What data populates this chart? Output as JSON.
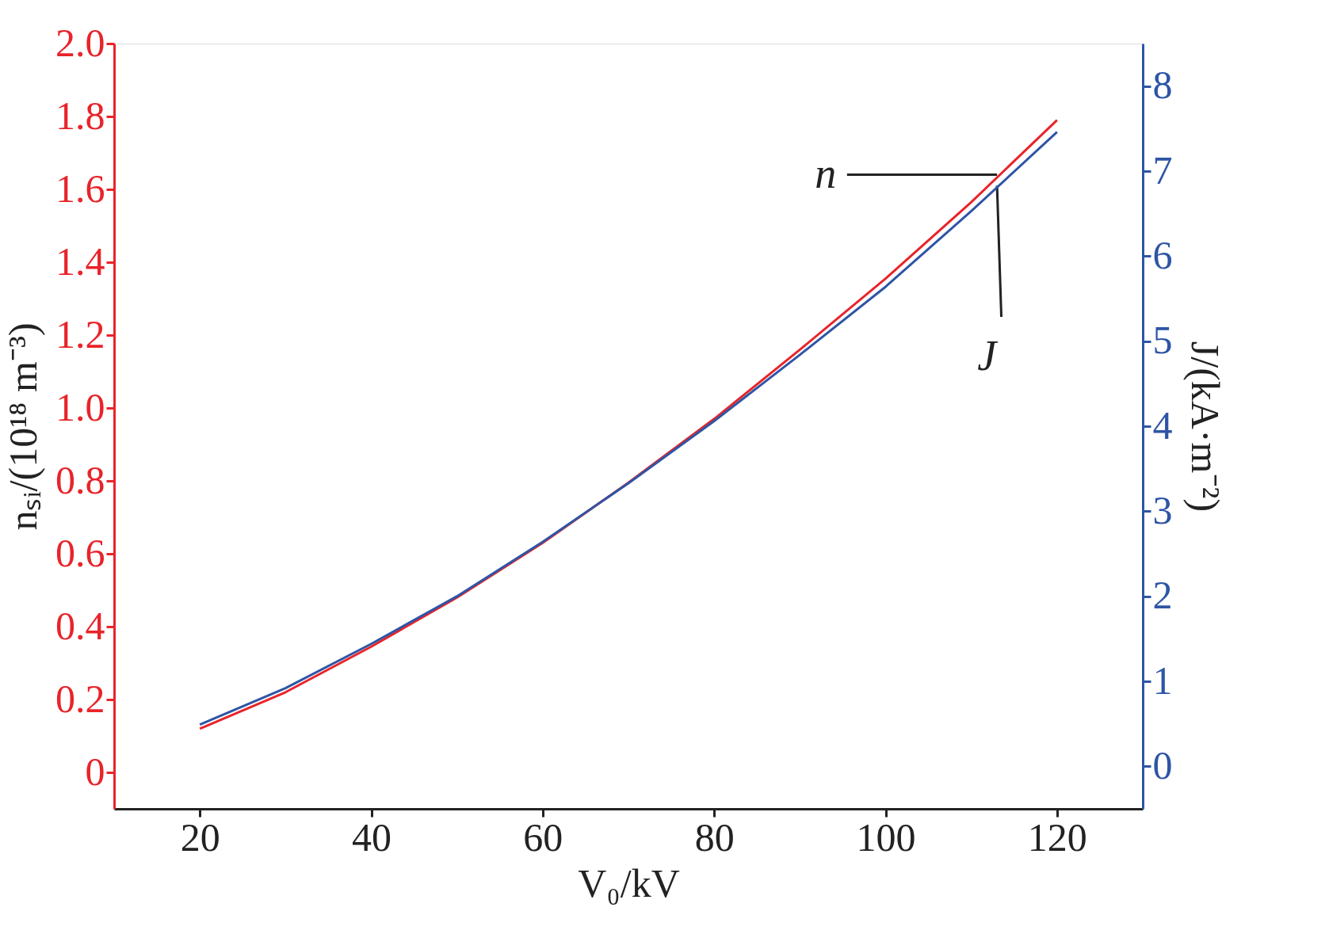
{
  "chart_data": {
    "type": "line",
    "xlabel": "V₀/kV",
    "ylabel": "nₛᵢ/(10¹⁸ m⁻³)",
    "y2label": "J/(kA·m⁻²)",
    "xlim": [
      10,
      130
    ],
    "xticks": [
      20,
      40,
      60,
      80,
      100,
      120
    ],
    "ylim": [
      -0.1,
      2.0
    ],
    "yticks": [
      0,
      0.2,
      0.4,
      0.6,
      0.8,
      {
        "value": 1,
        "label": "1.0"
      },
      1.2,
      1.4,
      1.6,
      1.8,
      {
        "value": 2,
        "label": "2.0"
      }
    ],
    "y2lim": [
      -0.5,
      8.5
    ],
    "y2ticks": [
      0,
      1,
      2,
      3,
      4,
      5,
      6,
      7,
      8
    ],
    "x": [
      20,
      30,
      40,
      50,
      60,
      70,
      80,
      90,
      100,
      110,
      120
    ],
    "series": [
      {
        "color": "#e8242a",
        "values": [
          0.12,
          0.22,
          0.345,
          0.48,
          0.63,
          0.795,
          0.97,
          1.16,
          1.355,
          1.565,
          1.79
        ]
      },
      {
        "color": "#2e55a5",
        "axis": "y2",
        "values": [
          0.49,
          0.92,
          1.44,
          2.0,
          2.64,
          3.33,
          4.06,
          4.84,
          5.64,
          6.53,
          7.46
        ]
      }
    ],
    "annotations": [
      {
        "text": "n",
        "x": 113,
        "y": 1.64
      },
      {
        "text": "J",
        "x": 113,
        "y": 1.61
      }
    ],
    "grid": false,
    "legend": false,
    "line_style": "solid",
    "marker": "none"
  }
}
